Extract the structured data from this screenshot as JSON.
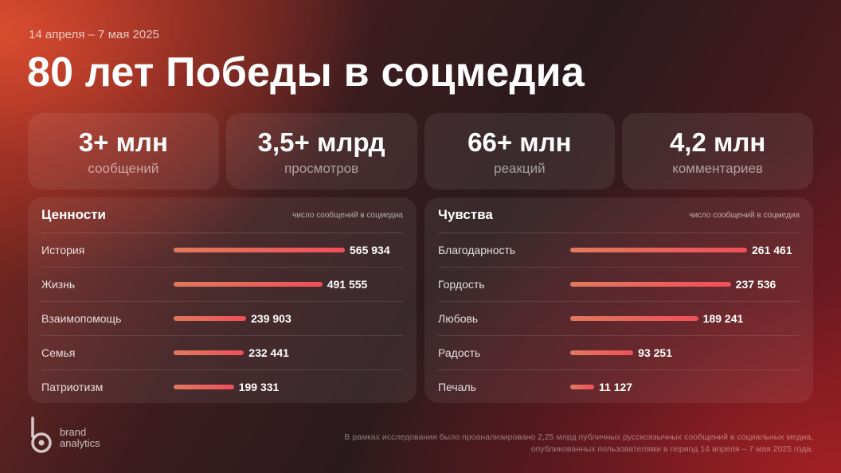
{
  "header": {
    "date": "14 апреля – 7 мая 2025",
    "title": "80 лет Победы в соцмедиа"
  },
  "stats": [
    {
      "value": "3+ млн",
      "label": "сообщений"
    },
    {
      "value": "3,5+ млрд",
      "label": "просмотров"
    },
    {
      "value": "66+ млн",
      "label": "реакций"
    },
    {
      "value": "4,2 млн",
      "label": "комментариев"
    }
  ],
  "chart_data": [
    {
      "type": "bar",
      "orientation": "horizontal",
      "title": "Ценности",
      "subtitle": "число сообщений в соцмедиа",
      "categories": [
        "История",
        "Жизнь",
        "Взаимопомощь",
        "Семья",
        "Патриотизм"
      ],
      "values": [
        565934,
        491555,
        239903,
        232441,
        199331
      ],
      "value_labels": [
        "565 934",
        "491 555",
        "239 903",
        "232 441",
        "199 331"
      ]
    },
    {
      "type": "bar",
      "orientation": "horizontal",
      "title": "Чувства",
      "subtitle": "число сообщений в соцмедиа",
      "categories": [
        "Благодарность",
        "Гордость",
        "Любовь",
        "Радость",
        "Печаль"
      ],
      "values": [
        261461,
        237536,
        189241,
        93251,
        11127
      ],
      "value_labels": [
        "261 461",
        "237 536",
        "189 241",
        "93 251",
        "11 127"
      ]
    }
  ],
  "colors": {
    "bar_start": "#e07a5c",
    "bar_end": "#f04f5a"
  },
  "logo": {
    "line1": "brand",
    "line2": "analytics",
    "icon": "brand-analytics-logo-icon"
  },
  "footer": {
    "line1": "В рамках исследования было проанализировано 2,25 млрд публичных русскоязычных сообщений в социальных медиа,",
    "line2": "опубликованных пользователями в период 14 апреля – 7 мая 2025 года."
  }
}
